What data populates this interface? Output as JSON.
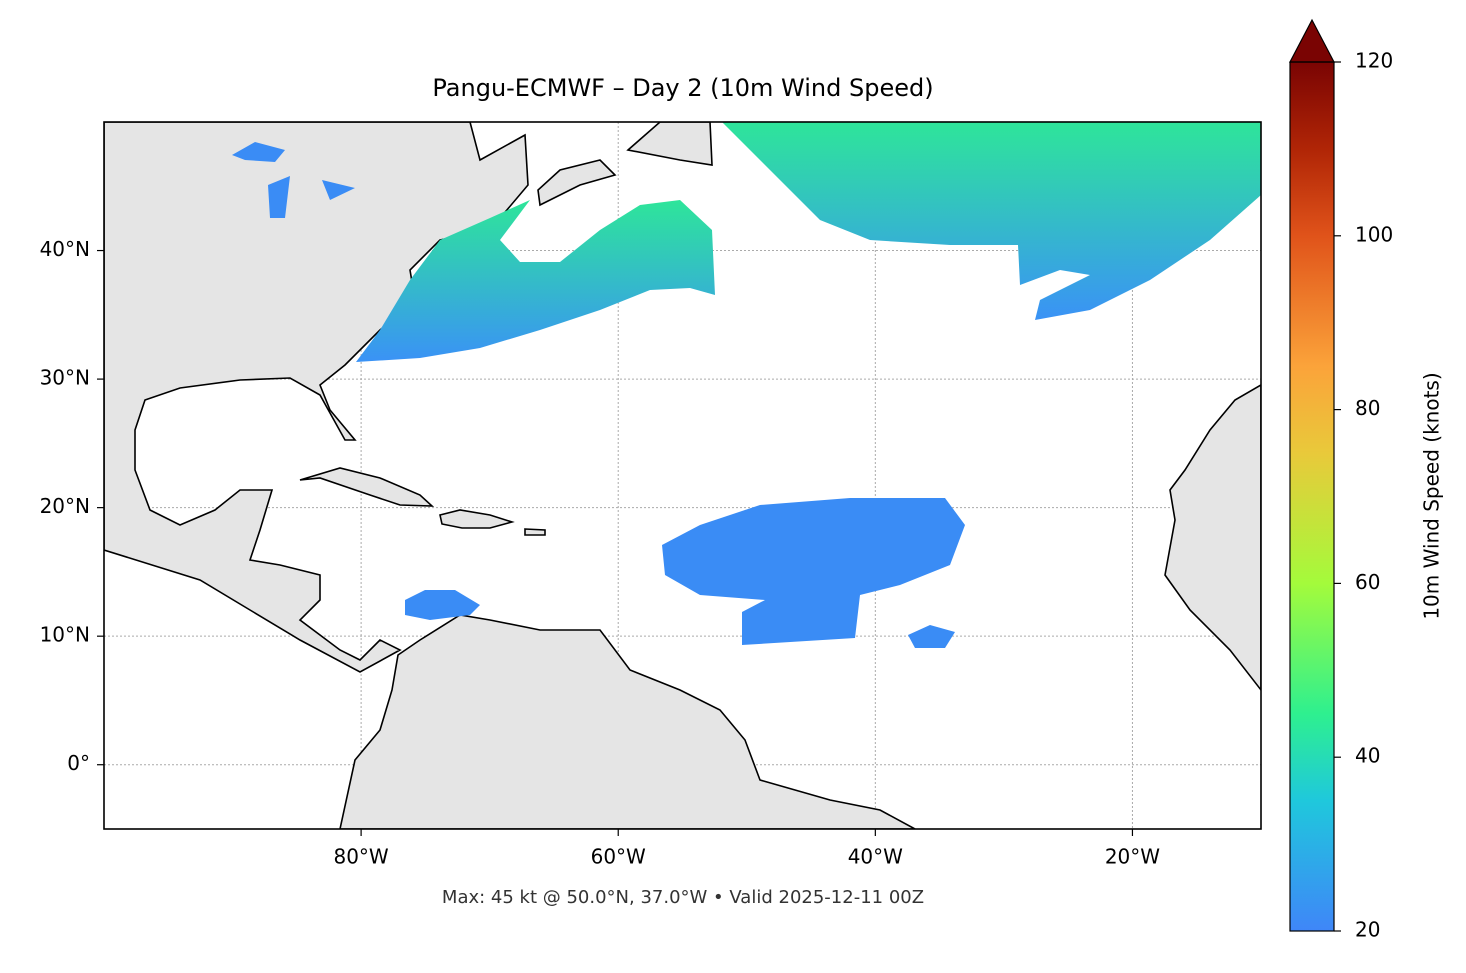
{
  "chart_data": {
    "type": "map",
    "title": "Pangu-ECMWF – Day 2 (10m Wind Speed)",
    "footer": "Max: 45 kt @ 50.0°N, 37.0°W • Valid 2025-12-11 00Z",
    "xlim": [
      -100,
      -10
    ],
    "ylim": [
      -5,
      50
    ],
    "xticks": [
      {
        "value": -80,
        "label": "80°W"
      },
      {
        "value": -60,
        "label": "60°W"
      },
      {
        "value": -40,
        "label": "40°W"
      },
      {
        "value": -20,
        "label": "20°W"
      }
    ],
    "yticks": [
      {
        "value": 0,
        "label": "0°"
      },
      {
        "value": 10,
        "label": "10°N"
      },
      {
        "value": 20,
        "label": "20°N"
      },
      {
        "value": 30,
        "label": "30°N"
      },
      {
        "value": 40,
        "label": "40°N"
      }
    ],
    "grid": true,
    "colorbar": {
      "label": "10m Wind Speed (knots)",
      "lim": [
        20,
        120
      ],
      "ticks": [
        20,
        40,
        60,
        80,
        100,
        120
      ]
    }
  }
}
